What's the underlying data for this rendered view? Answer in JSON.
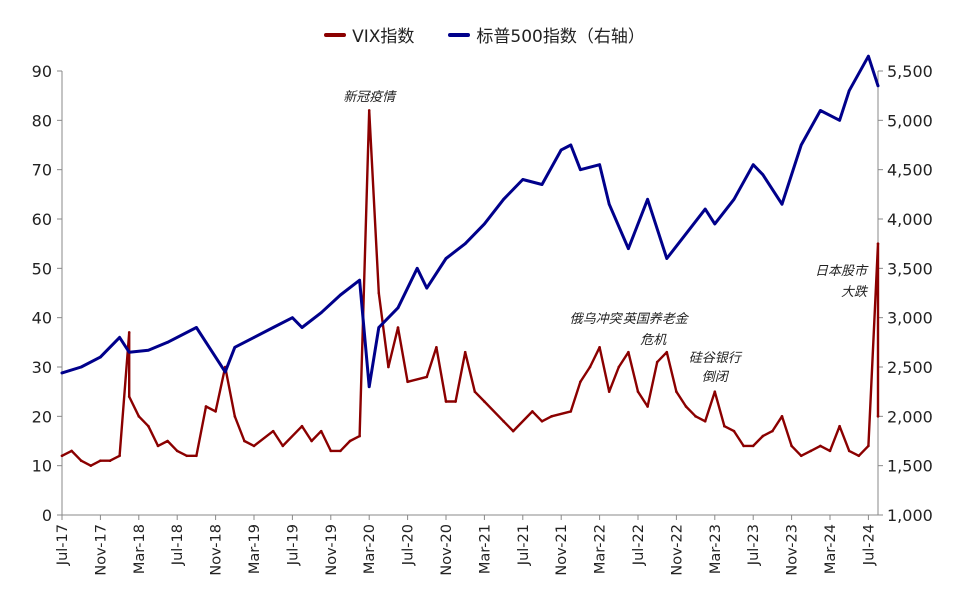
{
  "chart_data": {
    "type": "line",
    "title": "",
    "grid": false,
    "legend_position": "top-center",
    "legend": [
      {
        "label": "VIX指数",
        "color": "#8B0000"
      },
      {
        "label": "标普500指数（右轴）",
        "color": "#00008B"
      }
    ],
    "y_left": {
      "range": [
        0,
        90
      ],
      "ticks": [
        "0",
        "10",
        "20",
        "30",
        "40",
        "50",
        "60",
        "70",
        "80",
        "90"
      ]
    },
    "y_right": {
      "range": [
        1000,
        5500
      ],
      "ticks": [
        "1,000",
        "1,500",
        "2,000",
        "2,500",
        "3,000",
        "3,500",
        "4,000",
        "4,500",
        "5,000",
        "5,500"
      ]
    },
    "x_ticks": [
      "Jul-17",
      "Nov-17",
      "Mar-18",
      "Jul-18",
      "Nov-18",
      "Mar-19",
      "Jul-19",
      "Nov-19",
      "Mar-20",
      "Jul-20",
      "Nov-20",
      "Mar-21",
      "Jul-21",
      "Nov-21",
      "Mar-22",
      "Jul-22",
      "Nov-22",
      "Mar-23",
      "Jul-23",
      "Nov-23",
      "Mar-24",
      "Jul-24"
    ],
    "x_range": [
      "2017-07",
      "2024-08"
    ],
    "series": [
      {
        "name": "VIX指数",
        "axis": "left",
        "color": "#8B0000",
        "x": [
          "2017-07",
          "2017-08",
          "2017-09",
          "2017-10",
          "2017-11",
          "2017-12",
          "2018-01",
          "2018-02",
          "2018-02",
          "2018-03",
          "2018-04",
          "2018-05",
          "2018-06",
          "2018-07",
          "2018-08",
          "2018-09",
          "2018-10",
          "2018-11",
          "2018-12",
          "2019-01",
          "2019-02",
          "2019-03",
          "2019-05",
          "2019-06",
          "2019-08",
          "2019-09",
          "2019-10",
          "2019-11",
          "2019-12",
          "2020-01",
          "2020-02",
          "2020-03",
          "2020-04",
          "2020-05",
          "2020-06",
          "2020-07",
          "2020-09",
          "2020-10",
          "2020-11",
          "2020-12",
          "2021-01",
          "2021-02",
          "2021-03",
          "2021-05",
          "2021-06",
          "2021-08",
          "2021-09",
          "2021-10",
          "2021-12",
          "2022-01",
          "2022-02",
          "2022-03",
          "2022-04",
          "2022-05",
          "2022-06",
          "2022-07",
          "2022-08",
          "2022-09",
          "2022-10",
          "2022-11",
          "2022-12",
          "2023-01",
          "2023-02",
          "2023-03",
          "2023-04",
          "2023-05",
          "2023-06",
          "2023-07",
          "2023-08",
          "2023-09",
          "2023-10",
          "2023-11",
          "2023-12",
          "2024-01",
          "2024-02",
          "2024-03",
          "2024-04",
          "2024-05",
          "2024-06",
          "2024-07",
          "2024-08",
          "2024-08"
        ],
        "values": [
          12,
          13,
          11,
          10,
          11,
          11,
          12,
          37,
          24,
          20,
          18,
          14,
          15,
          13,
          12,
          12,
          22,
          21,
          30,
          20,
          15,
          14,
          17,
          14,
          18,
          15,
          17,
          13,
          13,
          15,
          16,
          82,
          45,
          30,
          38,
          27,
          28,
          34,
          23,
          23,
          33,
          25,
          23,
          19,
          17,
          21,
          19,
          20,
          21,
          27,
          30,
          34,
          25,
          30,
          33,
          25,
          22,
          31,
          33,
          25,
          22,
          20,
          19,
          25,
          18,
          17,
          14,
          14,
          16,
          17,
          20,
          14,
          12,
          13,
          14,
          13,
          18,
          13,
          12,
          14,
          55,
          20
        ],
        "annotations": [
          {
            "text": "新冠疫情",
            "x": "2020-03"
          },
          {
            "text": "俄乌冲突",
            "x": "2022-03"
          },
          {
            "text": "英国养老金",
            "x": "2022-09"
          },
          {
            "text": "危机",
            "x": "2022-09"
          },
          {
            "text": "硅谷银行",
            "x": "2023-03"
          },
          {
            "text": "倒闭",
            "x": "2023-03"
          },
          {
            "text": "日本股市",
            "x": "2024-08"
          },
          {
            "text": "大跌",
            "x": "2024-08"
          }
        ]
      },
      {
        "name": "标普500指数（右轴）",
        "axis": "right",
        "color": "#00008B",
        "x": [
          "2017-07",
          "2017-09",
          "2017-11",
          "2018-01",
          "2018-02",
          "2018-04",
          "2018-06",
          "2018-09",
          "2018-10",
          "2018-12",
          "2019-01",
          "2019-03",
          "2019-05",
          "2019-07",
          "2019-08",
          "2019-10",
          "2019-12",
          "2020-02",
          "2020-03",
          "2020-04",
          "2020-06",
          "2020-08",
          "2020-09",
          "2020-11",
          "2021-01",
          "2021-03",
          "2021-05",
          "2021-07",
          "2021-09",
          "2021-11",
          "2021-12",
          "2022-01",
          "2022-03",
          "2022-04",
          "2022-06",
          "2022-08",
          "2022-10",
          "2022-12",
          "2023-02",
          "2023-03",
          "2023-05",
          "2023-07",
          "2023-08",
          "2023-10",
          "2023-12",
          "2024-02",
          "2024-04",
          "2024-05",
          "2024-07",
          "2024-08"
        ],
        "values": [
          2440,
          2500,
          2600,
          2800,
          2650,
          2670,
          2750,
          2900,
          2750,
          2450,
          2700,
          2800,
          2900,
          3000,
          2900,
          3050,
          3230,
          3380,
          2300,
          2900,
          3100,
          3500,
          3300,
          3600,
          3750,
          3950,
          4200,
          4400,
          4350,
          4700,
          4750,
          4500,
          4550,
          4150,
          3700,
          4200,
          3600,
          3850,
          4100,
          3950,
          4200,
          4550,
          4450,
          4150,
          4750,
          5100,
          5000,
          5300,
          5650,
          5350
        ]
      }
    ]
  }
}
